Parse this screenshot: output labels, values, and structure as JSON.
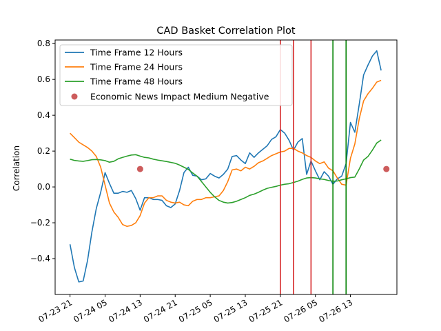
{
  "chart_data": {
    "type": "line",
    "title": "CAD Basket Correlation Plot",
    "xlabel": "",
    "ylabel": "Correlation",
    "x_unit": "hours since 07-23 21",
    "xlim": [
      -3.4,
      74.6
    ],
    "ylim": [
      -0.6,
      0.82
    ],
    "x_ticks": [
      {
        "x": 0,
        "label": "07-23 21"
      },
      {
        "x": 8,
        "label": "07-24 05"
      },
      {
        "x": 16,
        "label": "07-24 13"
      },
      {
        "x": 24,
        "label": "07-24 21"
      },
      {
        "x": 32,
        "label": "07-25 05"
      },
      {
        "x": 40,
        "label": "07-25 13"
      },
      {
        "x": 48,
        "label": "07-25 21"
      },
      {
        "x": 56,
        "label": "07-26 05"
      },
      {
        "x": 64,
        "label": "07-26 13"
      }
    ],
    "y_ticks": [
      -0.4,
      -0.2,
      0.0,
      0.2,
      0.4,
      0.6,
      0.8
    ],
    "y_tick_labels": [
      "−0.4",
      "−0.2",
      "0.0",
      "0.2",
      "0.4",
      "0.6",
      "0.8"
    ],
    "legend_position": "upper-left",
    "series": [
      {
        "name": "Time Frame 12 Hours",
        "color": "#1f77b4",
        "x": [
          0,
          1,
          2,
          3,
          4,
          5,
          6,
          7,
          8,
          9,
          10,
          11,
          12,
          13,
          14,
          15,
          16,
          17,
          18,
          19,
          20,
          21,
          22,
          23,
          24,
          25,
          26,
          27,
          28,
          29,
          30,
          31,
          32,
          33,
          34,
          35,
          36,
          37,
          38,
          39,
          40,
          41,
          42,
          43,
          44,
          45,
          46,
          47,
          48,
          49,
          50,
          51,
          52,
          53,
          54,
          55,
          56,
          57,
          58,
          59,
          60,
          61,
          62,
          63,
          64,
          65,
          66,
          67,
          68,
          69,
          70,
          71
        ],
        "y": [
          -0.32,
          -0.45,
          -0.53,
          -0.525,
          -0.41,
          -0.25,
          -0.12,
          -0.03,
          0.08,
          0.02,
          -0.035,
          -0.035,
          -0.025,
          -0.03,
          -0.02,
          -0.065,
          -0.13,
          -0.06,
          -0.06,
          -0.07,
          -0.07,
          -0.075,
          -0.105,
          -0.115,
          -0.095,
          -0.02,
          0.08,
          0.11,
          0.065,
          0.06,
          0.04,
          0.045,
          0.075,
          0.06,
          0.05,
          0.07,
          0.1,
          0.17,
          0.175,
          0.15,
          0.13,
          0.19,
          0.165,
          0.19,
          0.21,
          0.23,
          0.265,
          0.28,
          0.32,
          0.3,
          0.26,
          0.205,
          0.25,
          0.27,
          0.07,
          0.145,
          0.09,
          0.04,
          0.085,
          0.06,
          0.015,
          0.045,
          0.06,
          0.13,
          0.36,
          0.305,
          0.46,
          0.625,
          0.68,
          0.73,
          0.76,
          0.65
        ]
      },
      {
        "name": "Time Frame 24 Hours",
        "color": "#ff7f0e",
        "x": [
          0,
          1,
          2,
          3,
          4,
          5,
          6,
          7,
          8,
          9,
          10,
          11,
          12,
          13,
          14,
          15,
          16,
          17,
          18,
          19,
          20,
          21,
          22,
          23,
          24,
          25,
          26,
          27,
          28,
          29,
          30,
          31,
          32,
          33,
          34,
          35,
          36,
          37,
          38,
          39,
          40,
          41,
          42,
          43,
          44,
          45,
          46,
          47,
          48,
          49,
          50,
          51,
          52,
          53,
          54,
          55,
          56,
          57,
          58,
          59,
          60,
          61,
          62,
          63,
          64,
          65,
          66,
          67,
          68,
          69,
          70,
          71
        ],
        "y": [
          0.3,
          0.275,
          0.25,
          0.235,
          0.22,
          0.2,
          0.17,
          0.11,
          0.01,
          -0.09,
          -0.14,
          -0.17,
          -0.21,
          -0.22,
          -0.215,
          -0.2,
          -0.16,
          -0.09,
          -0.06,
          -0.06,
          -0.05,
          -0.05,
          -0.075,
          -0.085,
          -0.09,
          -0.085,
          -0.1,
          -0.105,
          -0.08,
          -0.07,
          -0.07,
          -0.06,
          -0.06,
          -0.055,
          -0.05,
          -0.02,
          0.03,
          0.095,
          0.1,
          0.09,
          0.11,
          0.1,
          0.115,
          0.135,
          0.145,
          0.16,
          0.175,
          0.185,
          0.195,
          0.2,
          0.215,
          0.215,
          0.2,
          0.19,
          0.175,
          0.165,
          0.145,
          0.13,
          0.14,
          0.105,
          0.09,
          0.05,
          0.015,
          0.01,
          0.16,
          0.24,
          0.38,
          0.48,
          0.52,
          0.55,
          0.585,
          0.595
        ]
      },
      {
        "name": "Time Frame 48 Hours",
        "color": "#2ca02c",
        "x": [
          0,
          1,
          2,
          3,
          4,
          5,
          6,
          7,
          8,
          9,
          10,
          11,
          12,
          13,
          14,
          15,
          16,
          17,
          18,
          19,
          20,
          21,
          22,
          23,
          24,
          25,
          26,
          27,
          28,
          29,
          30,
          31,
          32,
          33,
          34,
          35,
          36,
          37,
          38,
          39,
          40,
          41,
          42,
          43,
          44,
          45,
          46,
          47,
          48,
          49,
          50,
          51,
          52,
          53,
          54,
          55,
          56,
          57,
          58,
          59,
          60,
          61,
          62,
          63,
          64,
          65,
          66,
          67,
          68,
          69,
          70,
          71
        ],
        "y": [
          0.155,
          0.148,
          0.145,
          0.143,
          0.147,
          0.152,
          0.153,
          0.151,
          0.147,
          0.138,
          0.143,
          0.157,
          0.165,
          0.172,
          0.178,
          0.18,
          0.172,
          0.165,
          0.162,
          0.155,
          0.15,
          0.146,
          0.142,
          0.137,
          0.132,
          0.122,
          0.11,
          0.098,
          0.078,
          0.06,
          0.03,
          0.0,
          -0.03,
          -0.055,
          -0.075,
          -0.085,
          -0.09,
          -0.087,
          -0.08,
          -0.07,
          -0.06,
          -0.047,
          -0.04,
          -0.03,
          -0.018,
          -0.008,
          -0.002,
          0.003,
          0.01,
          0.015,
          0.018,
          0.025,
          0.032,
          0.042,
          0.05,
          0.052,
          0.05,
          0.045,
          0.042,
          0.036,
          0.032,
          0.033,
          0.04,
          0.045,
          0.052,
          0.055,
          0.1,
          0.15,
          0.17,
          0.205,
          0.245,
          0.262
        ]
      }
    ],
    "news_markers": {
      "name": "Economic News Impact Medium Negative",
      "color": "#cd5c5c",
      "points": [
        {
          "x": 16,
          "y": 0.1
        },
        {
          "x": 72.2,
          "y": 0.1
        }
      ]
    },
    "vertical_lines": [
      {
        "x": 48,
        "color": "#d62728"
      },
      {
        "x": 51,
        "color": "#d62728"
      },
      {
        "x": 55,
        "color": "#d62728"
      },
      {
        "x": 60,
        "color": "#008000"
      },
      {
        "x": 63,
        "color": "#008000"
      }
    ]
  }
}
